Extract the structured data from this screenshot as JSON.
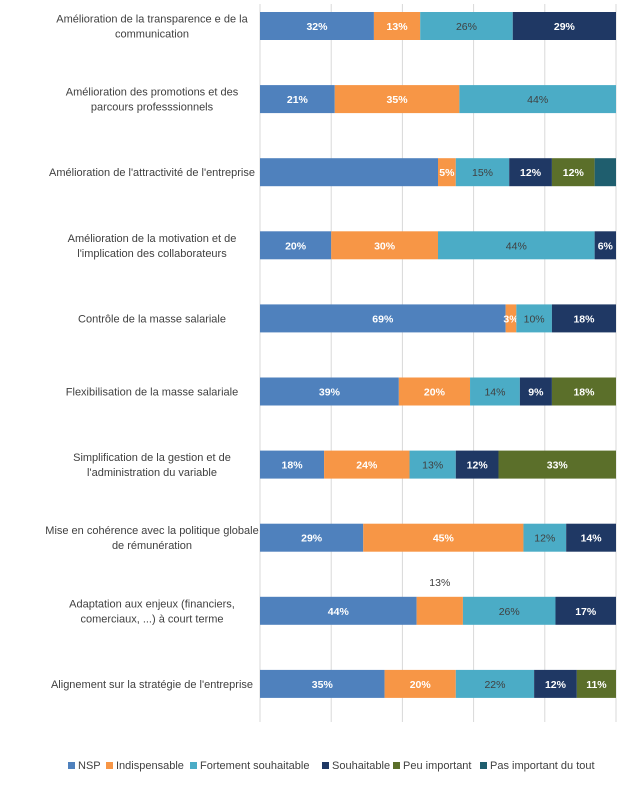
{
  "chart_data": {
    "type": "bar",
    "orientation": "horizontal",
    "stacked": true,
    "xlim": [
      0,
      100
    ],
    "grid": true,
    "legend_position": "bottom",
    "categories": [
      [
        "Amélioration de la transparence e de la",
        "communication"
      ],
      [
        "Amélioration des promotions et des",
        "parcours professsionnels"
      ],
      [
        "Amélioration de l'attractivité de l'entreprise"
      ],
      [
        "Amélioration de la motivation et de",
        "l'implication des collaborateurs"
      ],
      [
        "Contrôle de la masse salariale"
      ],
      [
        "Flexibilisation de la masse salariale"
      ],
      [
        "Simplification de la gestion et de",
        "l'administration du variable"
      ],
      [
        "Mise en cohérence avec la politique globale",
        "de rémunération"
      ],
      [
        "Adaptation aux enjeux (financiers,",
        "comerciaux, ...) à court terme"
      ],
      [
        "Alignement sur la stratégie de l'entreprise"
      ]
    ],
    "series": [
      {
        "name": "NSP",
        "color": "#4F81BD",
        "label_color": "#FFFFFF",
        "values": [
          32,
          21,
          50,
          20,
          69,
          39,
          18,
          29,
          44,
          35
        ],
        "labels": [
          "32%",
          "21%",
          "",
          "20%",
          "69%",
          "39%",
          "18%",
          "29%",
          "44%",
          "35%"
        ]
      },
      {
        "name": "Indispensable",
        "color": "#F79646",
        "label_color": "#FFFFFF",
        "values": [
          13,
          35,
          5,
          30,
          3,
          20,
          24,
          45,
          13,
          20
        ],
        "labels": [
          "13%",
          "35%",
          "5%",
          "30%",
          "3%",
          "20%",
          "24%",
          "45%",
          "13%",
          "20%"
        ],
        "label_outside_above": [
          false,
          false,
          false,
          false,
          false,
          false,
          false,
          false,
          true,
          false
        ]
      },
      {
        "name": "Fortement souhaitable",
        "color": "#4BACC6",
        "label_color": "#404040",
        "values": [
          26,
          44,
          15,
          44,
          10,
          14,
          13,
          12,
          26,
          22
        ],
        "labels": [
          "26%",
          "44%",
          "15%",
          "44%",
          "10%",
          "14%",
          "13%",
          "12%",
          "26%",
          "22%"
        ]
      },
      {
        "name": "Souhaitable",
        "color": "#1F3864",
        "label_color": "#FFFFFF",
        "values": [
          29,
          0,
          12,
          6,
          18,
          9,
          12,
          14,
          17,
          12
        ],
        "labels": [
          "29%",
          "",
          "12%",
          "6%",
          "18%",
          "9%",
          "12%",
          "14%",
          "17%",
          "12%"
        ]
      },
      {
        "name": "Peu important",
        "color": "#5B6F2A",
        "label_color": "#FFFFFF",
        "values": [
          0,
          0,
          12,
          0,
          0,
          18,
          33,
          0,
          0,
          11
        ],
        "labels": [
          "",
          "",
          "12%",
          "",
          "",
          "18%",
          "33%",
          "",
          "",
          "11%"
        ]
      },
      {
        "name": "Pas important du tout",
        "color": "#1F5E6E",
        "label_color": "#FFFFFF",
        "values": [
          0,
          0,
          6,
          0,
          0,
          0,
          0,
          0,
          0,
          0
        ],
        "labels": [
          "",
          "",
          "",
          "",
          "",
          "",
          "",
          "",
          "",
          ""
        ]
      }
    ]
  }
}
